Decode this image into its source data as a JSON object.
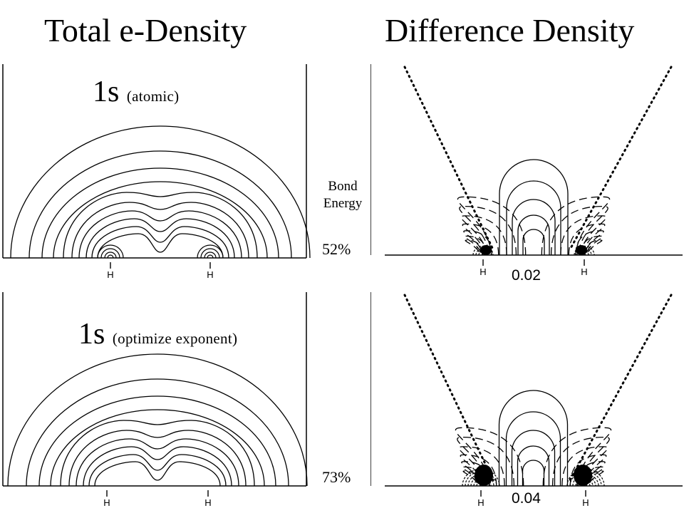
{
  "titles": {
    "left": "Total e-Density",
    "right": "Difference Density"
  },
  "rows": [
    {
      "label_main": "1s",
      "label_sub": "(atomic)",
      "bond_percent": "52%",
      "contour_value": "0.02"
    },
    {
      "label_main": "1s",
      "label_sub": "(optimize exponent)",
      "bond_percent": "73%",
      "contour_value": "0.04"
    }
  ],
  "bond_energy_label": [
    "Bond",
    "Energy"
  ],
  "atom_label": "H"
}
